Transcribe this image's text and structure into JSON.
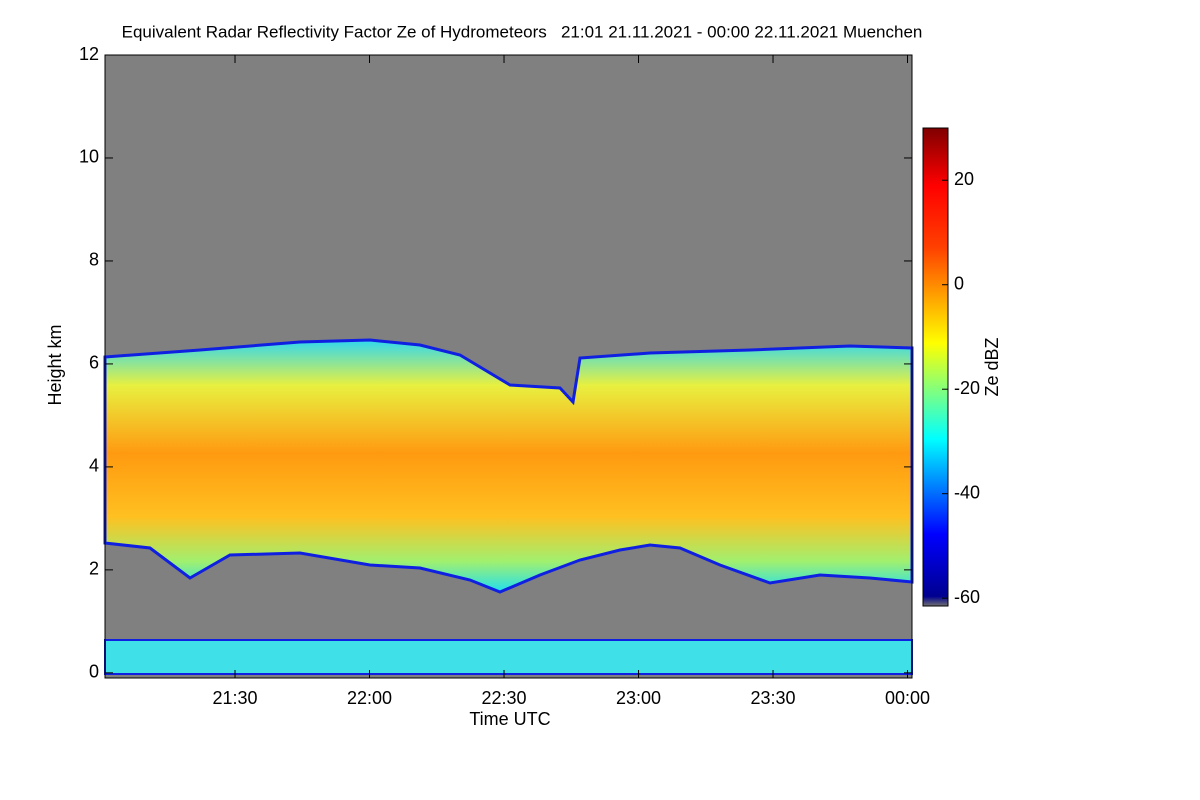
{
  "chart_data": {
    "type": "heatmap",
    "title": "Equivalent Radar Reflectivity Factor Ze of Hydrometeors   21:01 21.11.2021 - 00:00 22.11.2021 Muenchen",
    "x_label": "Time UTC",
    "y_label": "Height km",
    "colorbar_label": "Ze dBZ",
    "xlim": [
      1261,
      1441
    ],
    "xticks": [
      {
        "value": 1290,
        "label": "21:30"
      },
      {
        "value": 1320,
        "label": "22:00"
      },
      {
        "value": 1350,
        "label": "22:30"
      },
      {
        "value": 1380,
        "label": "23:00"
      },
      {
        "value": 1410,
        "label": "23:30"
      },
      {
        "value": 1440,
        "label": "00:00"
      }
    ],
    "ylim": [
      -0.1,
      12
    ],
    "yticks": [
      0,
      2,
      4,
      6,
      8,
      10,
      12
    ],
    "clim": [
      -61.5,
      30
    ],
    "cticks": [
      -60,
      -40,
      -20,
      0,
      20
    ]
  }
}
